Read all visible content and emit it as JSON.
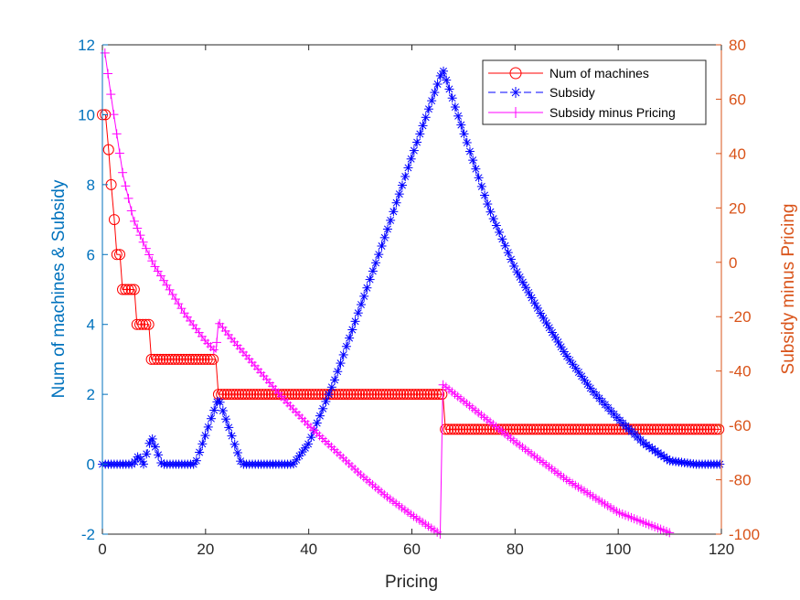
{
  "chart_data": {
    "type": "line",
    "xlabel": "Pricing",
    "ylabel_left": "Num of machines & Subsidy",
    "ylabel_right": "Subsidy minus Pricing",
    "xlim": [
      0,
      120
    ],
    "ylim_left": [
      -2,
      12
    ],
    "ylim_right": [
      -100,
      80
    ],
    "x_ticks": [
      "0",
      "20",
      "40",
      "60",
      "80",
      "100",
      "120"
    ],
    "y_left_ticks": [
      "-2",
      "0",
      "2",
      "4",
      "6",
      "8",
      "10",
      "12"
    ],
    "y_right_ticks": [
      "-100",
      "-80",
      "-60",
      "-40",
      "-20",
      "0",
      "20",
      "40",
      "60",
      "80"
    ],
    "legend_position": "top-right",
    "colors": {
      "left_axis": "#0072BD",
      "right_axis": "#D95319"
    },
    "series": [
      {
        "name": "Num of machines",
        "color": "#FF0000",
        "marker": "circle",
        "axis": "left",
        "steps": [
          {
            "x_start": 0,
            "x_end": 0.6,
            "value": 10
          },
          {
            "x_start": 1.2,
            "x_end": 1.2,
            "value": 9
          },
          {
            "x_start": 1.7,
            "x_end": 1.7,
            "value": 8
          },
          {
            "x_start": 2.3,
            "x_end": 2.3,
            "value": 7
          },
          {
            "x_start": 2.8,
            "x_end": 3.4,
            "value": 6
          },
          {
            "x_start": 3.9,
            "x_end": 6.2,
            "value": 5
          },
          {
            "x_start": 6.7,
            "x_end": 9.0,
            "value": 4
          },
          {
            "x_start": 9.5,
            "x_end": 22.0,
            "value": 3
          },
          {
            "x_start": 22.5,
            "x_end": 66.0,
            "value": 2
          },
          {
            "x_start": 66.5,
            "x_end": 120.0,
            "value": 1
          }
        ]
      },
      {
        "name": "Subsidy",
        "color": "#0000FF",
        "marker": "star",
        "axis": "left",
        "points": [
          [
            0,
            0
          ],
          [
            6,
            0
          ],
          [
            7,
            0.25
          ],
          [
            8,
            0
          ],
          [
            9.5,
            0.8
          ],
          [
            11.5,
            0
          ],
          [
            18,
            0
          ],
          [
            22.5,
            1.9
          ],
          [
            27,
            0
          ],
          [
            37,
            0
          ],
          [
            40,
            0.6
          ],
          [
            45,
            2.4
          ],
          [
            50,
            4.5
          ],
          [
            55,
            6.6
          ],
          [
            60,
            8.8
          ],
          [
            66,
            11.3
          ],
          [
            70,
            9.5
          ],
          [
            75,
            7.3
          ],
          [
            80,
            5.6
          ],
          [
            85,
            4.3
          ],
          [
            90,
            3.1
          ],
          [
            95,
            2.1
          ],
          [
            100,
            1.3
          ],
          [
            105,
            0.6
          ],
          [
            110,
            0.1
          ],
          [
            115,
            0
          ],
          [
            120,
            0
          ]
        ]
      },
      {
        "name": "Subsidy minus Pricing",
        "color": "#FF00FF",
        "marker": "plus",
        "axis": "right",
        "points": [
          [
            0.5,
            77
          ],
          [
            2,
            57
          ],
          [
            4,
            32
          ],
          [
            6,
            16
          ],
          [
            8,
            7
          ],
          [
            10,
            -1
          ],
          [
            12,
            -7
          ],
          [
            14,
            -13
          ],
          [
            16,
            -19
          ],
          [
            18,
            -24
          ],
          [
            20,
            -29
          ],
          [
            22,
            -33
          ],
          [
            22.5,
            -22
          ],
          [
            25,
            -28
          ],
          [
            30,
            -39
          ],
          [
            35,
            -50
          ],
          [
            40,
            -60
          ],
          [
            45,
            -69
          ],
          [
            50,
            -78
          ],
          [
            55,
            -86
          ],
          [
            60,
            -93
          ],
          [
            65.5,
            -100
          ],
          [
            66,
            -45
          ],
          [
            70,
            -51
          ],
          [
            80,
            -66
          ],
          [
            90,
            -80
          ],
          [
            100,
            -92
          ],
          [
            110,
            -99.5
          ]
        ]
      }
    ]
  }
}
